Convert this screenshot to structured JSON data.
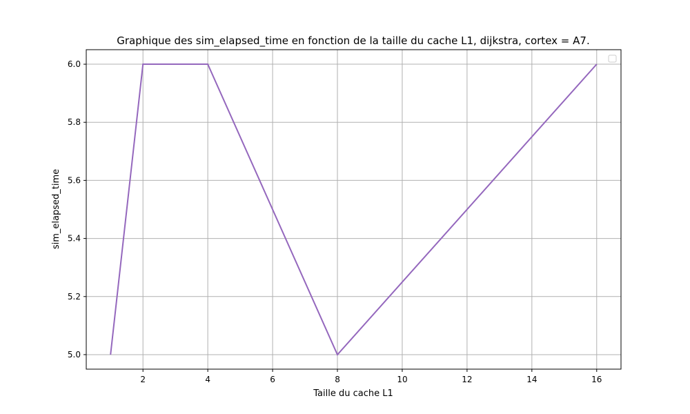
{
  "chart_data": {
    "type": "line",
    "title": "Graphique des sim_elapsed_time en fonction de la taille du cache L1, dijkstra, cortex = A7.",
    "xlabel": "Taille du cache L1",
    "ylabel": "sim_elapsed_time",
    "xlim": [
      0.25,
      16.75
    ],
    "ylim": [
      4.95,
      6.05
    ],
    "xticks": [
      2,
      4,
      6,
      8,
      10,
      12,
      14,
      16
    ],
    "yticks": [
      5.0,
      5.2,
      5.4,
      5.6,
      5.8,
      6.0
    ],
    "xtick_labels": [
      "2",
      "4",
      "6",
      "8",
      "10",
      "12",
      "14",
      "16"
    ],
    "ytick_labels": [
      "5.0",
      "5.2",
      "5.4",
      "5.6",
      "5.8",
      "6.0"
    ],
    "grid": true,
    "legend": "top-right",
    "series": [
      {
        "x": [
          1,
          2,
          4,
          8,
          16
        ],
        "y": [
          5.0,
          6.0,
          6.0,
          5.0,
          6.0
        ],
        "color": "#9467bd"
      }
    ]
  }
}
